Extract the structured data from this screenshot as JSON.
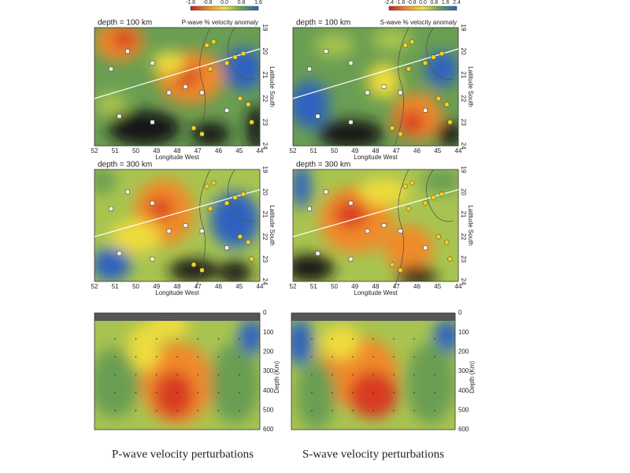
{
  "maps": [
    {
      "depth_label": "depth = 100 km",
      "colorbar_title": "P-wave % velocity anomaly",
      "colorbar_ticks": [
        "-1.6",
        "-0.8",
        "0.0",
        "0.8",
        "1.6"
      ]
    },
    {
      "depth_label": "depth = 100 km",
      "colorbar_title": "S-wave % velocity anomaly",
      "colorbar_ticks": [
        "-2.4",
        "-1.6",
        "-0.8",
        "0.0",
        "0.8",
        "1.6",
        "2.4"
      ]
    },
    {
      "depth_label": "depth = 300 km"
    },
    {
      "depth_label": "depth = 300 km"
    }
  ],
  "longitude": {
    "label": "Longitude West",
    "ticks": [
      "52",
      "51",
      "50",
      "49",
      "48",
      "47",
      "46",
      "45",
      "44"
    ]
  },
  "latitude": {
    "label": "Latitude South",
    "ticks": [
      "19",
      "20",
      "21",
      "22",
      "23",
      "24"
    ]
  },
  "depth_axis": {
    "label": "Depth (Km)",
    "ticks": [
      "0",
      "100",
      "200",
      "300",
      "400",
      "500",
      "600"
    ]
  },
  "captions": [
    "P-wave velocity perturbations",
    "S-wave velocity perturbations"
  ]
}
